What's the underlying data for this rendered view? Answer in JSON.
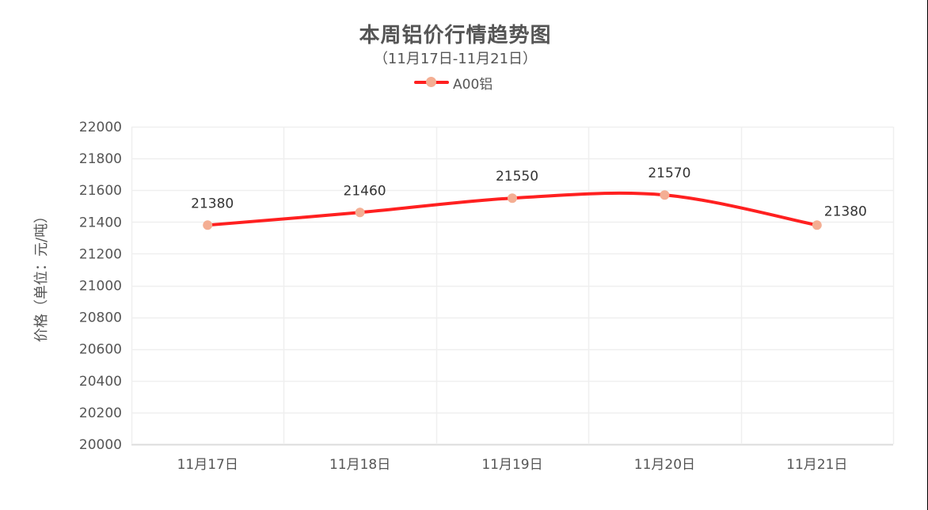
{
  "chart": {
    "title": "本周铝价行情趋势图",
    "subtitle": "（11月17日-11月21日）",
    "legend": [
      {
        "name": "A00铝",
        "line_color": "#ff2020",
        "marker_color": "#f4ae93"
      }
    ],
    "y_axis_label": "价格（单位：元/吨）",
    "y_ticks": [
      "22000",
      "21800",
      "21600",
      "21400",
      "21200",
      "21000",
      "20800",
      "20600",
      "20400",
      "20200",
      "20000"
    ],
    "x_ticks": [
      "11月17日",
      "11月18日",
      "11月19日",
      "11月20日",
      "11月21日"
    ],
    "data_labels": [
      "21380",
      "21460",
      "21550",
      "21570",
      "21380"
    ]
  },
  "chart_data": {
    "type": "line",
    "title": "本周铝价行情趋势图",
    "subtitle": "（11月17日-11月21日）",
    "categories": [
      "11月17日",
      "11月18日",
      "11月19日",
      "11月20日",
      "11月21日"
    ],
    "series": [
      {
        "name": "A00铝",
        "values": [
          21380,
          21460,
          21550,
          21570,
          21380
        ],
        "color": "#ff2020",
        "marker_color": "#f4ae93",
        "smooth": true
      }
    ],
    "xlabel": "",
    "ylabel": "价格（单位：元/吨）",
    "ylim": [
      20000,
      22000
    ],
    "y_tick_step": 200,
    "grid": true,
    "legend_position": "top-center",
    "data_labels": true
  }
}
